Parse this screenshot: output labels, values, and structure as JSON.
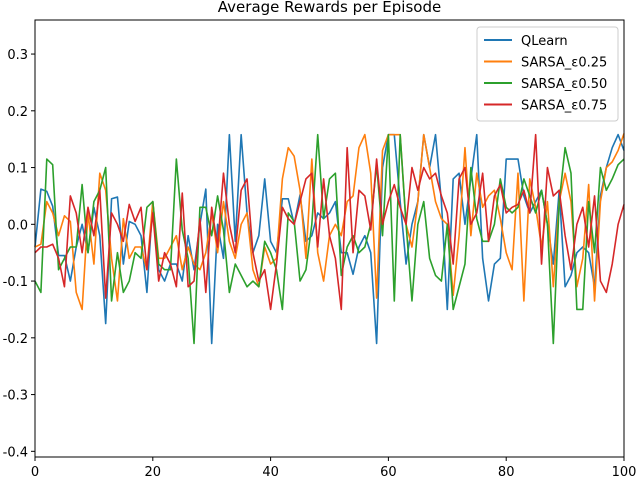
{
  "chart_data": {
    "type": "line",
    "title": "Average Rewards per Episode",
    "xlabel": "",
    "ylabel": "",
    "xlim": [
      0,
      100
    ],
    "ylim": [
      -0.41,
      0.36
    ],
    "xticks": [
      0,
      20,
      40,
      60,
      80,
      100
    ],
    "yticks": [
      -0.4,
      -0.3,
      -0.2,
      -0.1,
      0.0,
      0.1,
      0.2,
      0.3
    ],
    "ytick_labels": [
      "-0.4",
      "-0.3",
      "-0.2",
      "-0.1",
      "0.0",
      "0.1",
      "0.2",
      "0.3"
    ],
    "grid": false,
    "legend_position": "top-right",
    "x": [
      0,
      1,
      2,
      3,
      4,
      5,
      6,
      7,
      8,
      9,
      10,
      11,
      12,
      13,
      14,
      15,
      16,
      17,
      18,
      19,
      20,
      21,
      22,
      23,
      24,
      25,
      26,
      27,
      28,
      29,
      30,
      31,
      32,
      33,
      34,
      35,
      36,
      37,
      38,
      39,
      40,
      41,
      42,
      43,
      44,
      45,
      46,
      47,
      48,
      49,
      50,
      51,
      52,
      53,
      54,
      55,
      56,
      57,
      58,
      59,
      60,
      61,
      62,
      63,
      64,
      65,
      66,
      67,
      68,
      69,
      70,
      71,
      72,
      73,
      74,
      75,
      76,
      77,
      78,
      79,
      80,
      81,
      82,
      83,
      84,
      85,
      86,
      87,
      88,
      89,
      90,
      91,
      92,
      93,
      94,
      95,
      96,
      97,
      98,
      99,
      100
    ],
    "series": [
      {
        "name": "QLearn",
        "color": "#1f77b4",
        "values": [
          -0.04,
          0.062,
          0.058,
          0.032,
          -0.055,
          -0.055,
          -0.1,
          -0.04,
          0.0,
          -0.05,
          0.03,
          -0.02,
          -0.175,
          0.045,
          0.048,
          -0.07,
          0.005,
          0.0,
          -0.02,
          -0.12,
          0.04,
          -0.08,
          -0.1,
          -0.07,
          -0.07,
          -0.1,
          -0.02,
          -0.08,
          0.0,
          0.062,
          -0.21,
          0.0,
          -0.06,
          0.158,
          -0.03,
          0.158,
          0.02,
          -0.05,
          -0.02,
          0.08,
          -0.03,
          -0.05,
          0.045,
          0.045,
          0.0,
          0.052,
          -0.03,
          -0.02,
          0.02,
          0.01,
          0.02,
          0.04,
          -0.05,
          -0.05,
          -0.088,
          -0.04,
          -0.02,
          -0.05,
          -0.21,
          0.1,
          0.158,
          0.158,
          0.04,
          -0.07,
          0.0,
          0.04,
          0.158,
          0.1,
          0.158,
          0.04,
          -0.15,
          0.08,
          0.09,
          0.0,
          0.08,
          0.158,
          -0.06,
          -0.135,
          -0.07,
          -0.06,
          0.115,
          0.115,
          0.115,
          0.05,
          0.02,
          0.04,
          0.06,
          0.0,
          -0.07,
          0.06,
          -0.11,
          -0.09,
          -0.05,
          -0.04,
          -0.05,
          -0.11,
          0.05,
          0.1,
          0.135,
          0.158,
          0.13
        ]
      },
      {
        "name": "SARSA_ε0.25",
        "color": "#ff7f0e",
        "values": [
          -0.04,
          -0.035,
          0.04,
          0.02,
          -0.02,
          0.015,
          0.005,
          -0.12,
          -0.15,
          0.02,
          -0.07,
          0.09,
          0.06,
          -0.06,
          -0.135,
          0.01,
          -0.06,
          -0.04,
          -0.04,
          -0.08,
          0.04,
          -0.06,
          -0.06,
          -0.04,
          -0.02,
          -0.08,
          -0.04,
          -0.07,
          -0.08,
          -0.05,
          0.02,
          -0.05,
          0.04,
          -0.03,
          -0.06,
          0.0,
          0.02,
          -0.08,
          -0.11,
          -0.04,
          -0.07,
          -0.06,
          0.08,
          0.135,
          0.12,
          0.06,
          -0.06,
          0.115,
          -0.05,
          -0.1,
          -0.02,
          0.0,
          -0.02,
          0.04,
          0.05,
          0.135,
          0.158,
          0.09,
          -0.13,
          0.13,
          0.158,
          0.158,
          0.158,
          0.0,
          -0.04,
          0.04,
          0.158,
          0.1,
          0.04,
          0.01,
          0.0,
          -0.125,
          -0.02,
          0.135,
          -0.02,
          0.09,
          0.03,
          0.05,
          0.06,
          0.01,
          -0.05,
          -0.08,
          0.09,
          -0.135,
          0.08,
          0.03,
          -0.04,
          0.04,
          -0.11,
          0.04,
          0.09,
          0.04,
          -0.11,
          -0.06,
          0.07,
          -0.135,
          0.04,
          0.1,
          0.11,
          0.13,
          0.16
        ]
      },
      {
        "name": "SARSA_ε0.50",
        "color": "#2ca02c",
        "values": [
          -0.1,
          -0.12,
          0.115,
          0.105,
          -0.08,
          -0.06,
          -0.04,
          -0.04,
          0.07,
          -0.05,
          0.04,
          0.06,
          0.1,
          -0.135,
          -0.05,
          -0.12,
          -0.1,
          -0.05,
          -0.06,
          0.03,
          0.04,
          -0.07,
          -0.08,
          -0.08,
          0.115,
          -0.01,
          -0.06,
          -0.21,
          0.03,
          0.03,
          -0.02,
          0.05,
          -0.01,
          -0.12,
          -0.07,
          -0.09,
          -0.11,
          -0.1,
          -0.11,
          -0.03,
          -0.05,
          -0.08,
          -0.15,
          0.02,
          0.005,
          -0.1,
          -0.08,
          0.0,
          0.158,
          0.01,
          0.08,
          0.09,
          -0.09,
          -0.04,
          -0.02,
          -0.05,
          -0.04,
          0.0,
          0.105,
          -0.02,
          0.158,
          -0.135,
          0.158,
          0.0,
          -0.135,
          0.0,
          0.04,
          -0.06,
          -0.09,
          -0.1,
          0.0,
          -0.15,
          -0.11,
          -0.07,
          0.1,
          0.01,
          -0.03,
          -0.03,
          0.0,
          0.08,
          0.03,
          0.02,
          0.03,
          0.08,
          0.05,
          0.02,
          0.06,
          0.0,
          -0.21,
          0.04,
          0.135,
          0.09,
          -0.15,
          -0.15,
          0.04,
          -0.05,
          0.1,
          0.06,
          0.08,
          0.105,
          0.115
        ]
      },
      {
        "name": "SARSA_ε0.75",
        "color": "#d62728",
        "values": [
          -0.05,
          -0.04,
          -0.04,
          -0.035,
          -0.06,
          -0.11,
          0.05,
          0.02,
          -0.05,
          0.03,
          -0.02,
          0.06,
          -0.13,
          0.02,
          0.0,
          -0.03,
          0.035,
          0.005,
          0.03,
          -0.08,
          0.02,
          -0.1,
          -0.05,
          -0.07,
          -0.11,
          0.055,
          -0.11,
          -0.1,
          0.01,
          -0.12,
          0.03,
          -0.04,
          0.09,
          0.0,
          -0.05,
          0.06,
          0.08,
          -0.05,
          -0.1,
          -0.08,
          -0.15,
          -0.07,
          0.03,
          0.01,
          0.0,
          0.04,
          0.08,
          0.09,
          -0.04,
          0.08,
          -0.02,
          -0.06,
          -0.15,
          0.135,
          -0.05,
          0.06,
          0.05,
          -0.01,
          0.115,
          0.0,
          0.04,
          0.07,
          0.03,
          0.0,
          0.1,
          0.06,
          0.1,
          0.08,
          0.09,
          0.05,
          0.02,
          -0.07,
          0.08,
          0.1,
          0.0,
          0.02,
          0.09,
          -0.03,
          0.05,
          0.07,
          0.02,
          0.03,
          0.035,
          0.06,
          0.02,
          0.158,
          -0.07,
          0.1,
          0.05,
          0.06,
          -0.02,
          -0.08,
          0.0,
          0.03,
          -0.04,
          0.05,
          -0.1,
          -0.12,
          -0.07,
          0.0,
          0.035
        ]
      }
    ]
  }
}
